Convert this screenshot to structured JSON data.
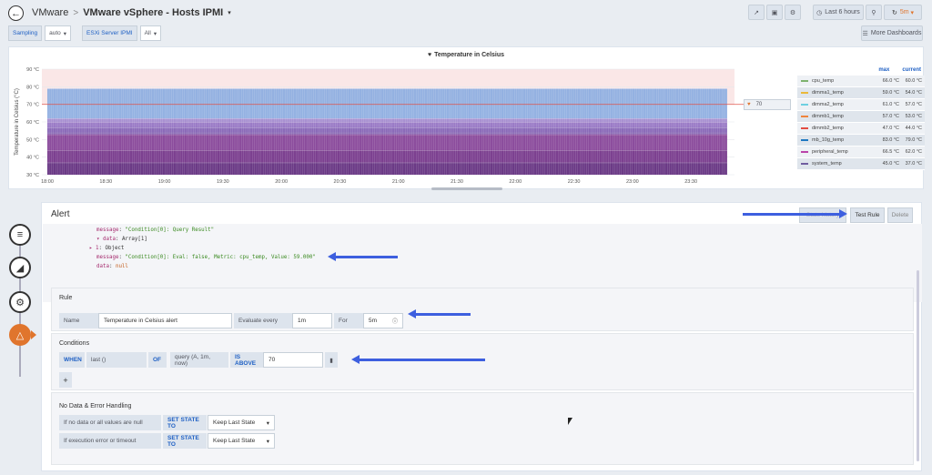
{
  "nav": {
    "back_icon": "arrow-left-icon",
    "folder": "VMware",
    "separator": ">",
    "title": "VMware vSphere - Hosts IPMI",
    "title_caret": "▾",
    "time_range": "Last 6 hours",
    "refresh": "5m",
    "more_dashboards": "More Dashboards"
  },
  "variables": [
    {
      "label": "Sampling",
      "value": "auto"
    },
    {
      "label": "ESXi Server IPMI",
      "value": "All"
    }
  ],
  "graph": {
    "title": "Temperature in Celsius",
    "threshold_value": "70",
    "legend_headers": {
      "max": "max",
      "current": "current"
    },
    "legend": [
      {
        "name": "cpu_temp",
        "max": "66.0 °C",
        "current": "60.0 °C",
        "color": "#7eb26d"
      },
      {
        "name": "dimma1_temp",
        "max": "59.0 °C",
        "current": "54.0 °C",
        "color": "#eab839"
      },
      {
        "name": "dimma2_temp",
        "max": "61.0 °C",
        "current": "57.0 °C",
        "color": "#6ed0e0"
      },
      {
        "name": "dimmb1_temp",
        "max": "57.0 °C",
        "current": "53.0 °C",
        "color": "#ef843c"
      },
      {
        "name": "dimmb2_temp",
        "max": "47.0 °C",
        "current": "44.0 °C",
        "color": "#e24d42"
      },
      {
        "name": "mb_10g_temp",
        "max": "83.0 °C",
        "current": "79.0 °C",
        "color": "#1f78c1"
      },
      {
        "name": "peripheral_temp",
        "max": "66.5 °C",
        "current": "62.0 °C",
        "color": "#ba43a9"
      },
      {
        "name": "system_temp",
        "max": "45.0 °C",
        "current": "37.0 °C",
        "color": "#705da0"
      }
    ]
  },
  "chart_data": {
    "type": "area",
    "title": "Temperature in Celsius",
    "ylabel": "Temperature in Celsius (°C)",
    "xlabel": "",
    "ylim": [
      30,
      90
    ],
    "yticks": [
      "30 °C",
      "40 °C",
      "50 °C",
      "60 °C",
      "70 °C",
      "80 °C",
      "90 °C"
    ],
    "x": [
      "18:00",
      "18:30",
      "19:00",
      "19:30",
      "20:00",
      "20:30",
      "21:00",
      "21:30",
      "22:00",
      "22:30",
      "23:00",
      "23:30"
    ],
    "threshold": 70,
    "stacked": true,
    "grid": true,
    "series": [
      {
        "name": "system_temp",
        "values": [
          37,
          37,
          37,
          37,
          37,
          37,
          37,
          37,
          37,
          37,
          37,
          37
        ]
      },
      {
        "name": "dimmb2_temp",
        "values": [
          44,
          44,
          44,
          44,
          44,
          44,
          44,
          44,
          44,
          44,
          44,
          44
        ]
      },
      {
        "name": "dimmb1_temp",
        "values": [
          53,
          53,
          53,
          53,
          53,
          53,
          53,
          53,
          53,
          53,
          53,
          53
        ]
      },
      {
        "name": "dimma1_temp",
        "values": [
          54,
          54,
          54,
          54,
          54,
          54,
          54,
          54,
          54,
          54,
          54,
          54
        ]
      },
      {
        "name": "dimma2_temp",
        "values": [
          57,
          57,
          57,
          57,
          57,
          57,
          57,
          57,
          57,
          57,
          57,
          57
        ]
      },
      {
        "name": "cpu_temp",
        "values": [
          60,
          60,
          60,
          60,
          60,
          60,
          60,
          60,
          60,
          60,
          60,
          60
        ]
      },
      {
        "name": "peripheral_temp",
        "values": [
          62,
          62,
          62,
          62,
          62,
          62,
          62,
          62,
          62,
          62,
          62,
          62
        ]
      },
      {
        "name": "mb_10g_temp",
        "values": [
          79,
          79,
          79,
          79,
          79,
          79,
          79,
          79,
          79,
          79,
          79,
          79
        ]
      }
    ]
  },
  "alert": {
    "title": "Alert",
    "state_history": "State history",
    "test_rule": "Test Rule",
    "delete": "Delete",
    "json_lines": [
      {
        "indent": 3,
        "key": "message",
        "value": "\"Condition[0]: Query Result\"",
        "type": "str"
      },
      {
        "indent": 3,
        "key": "▾ data",
        "value": "Array[1]",
        "type": "plain"
      },
      {
        "indent": 2,
        "key": "▸ 1",
        "value": "Object",
        "type": "plain"
      },
      {
        "indent": 3,
        "key": "message",
        "value": "\"Condition[0]: Eval: false, Metric: cpu_temp, Value: 59.000\"",
        "type": "str"
      },
      {
        "indent": 3,
        "key": "data",
        "value": "null",
        "type": "null"
      }
    ],
    "rule": {
      "section_title": "Rule",
      "name_label": "Name",
      "name_value": "Temperature in Celsius alert",
      "evaluate_label": "Evaluate every",
      "evaluate_value": "1m",
      "for_label": "For",
      "for_value": "5m"
    },
    "conditions": {
      "section_title": "Conditions",
      "when": "WHEN",
      "reducer": "last ()",
      "of": "OF",
      "query": "query (A, 1m, now)",
      "evaluator": "IS ABOVE",
      "threshold": "70",
      "add": "+"
    },
    "nodata": {
      "section_title": "No Data & Error Handling",
      "row1_label": "If no data or all values are null",
      "row1_key": "SET STATE TO",
      "row1_value": "Keep Last State",
      "row2_label": "If execution error or timeout",
      "row2_key": "SET STATE TO",
      "row2_value": "Keep Last State"
    }
  },
  "sidebar": [
    {
      "icon": "database-icon"
    },
    {
      "icon": "chart-area-icon"
    },
    {
      "icon": "gear-icon"
    },
    {
      "icon": "bell-icon"
    }
  ]
}
